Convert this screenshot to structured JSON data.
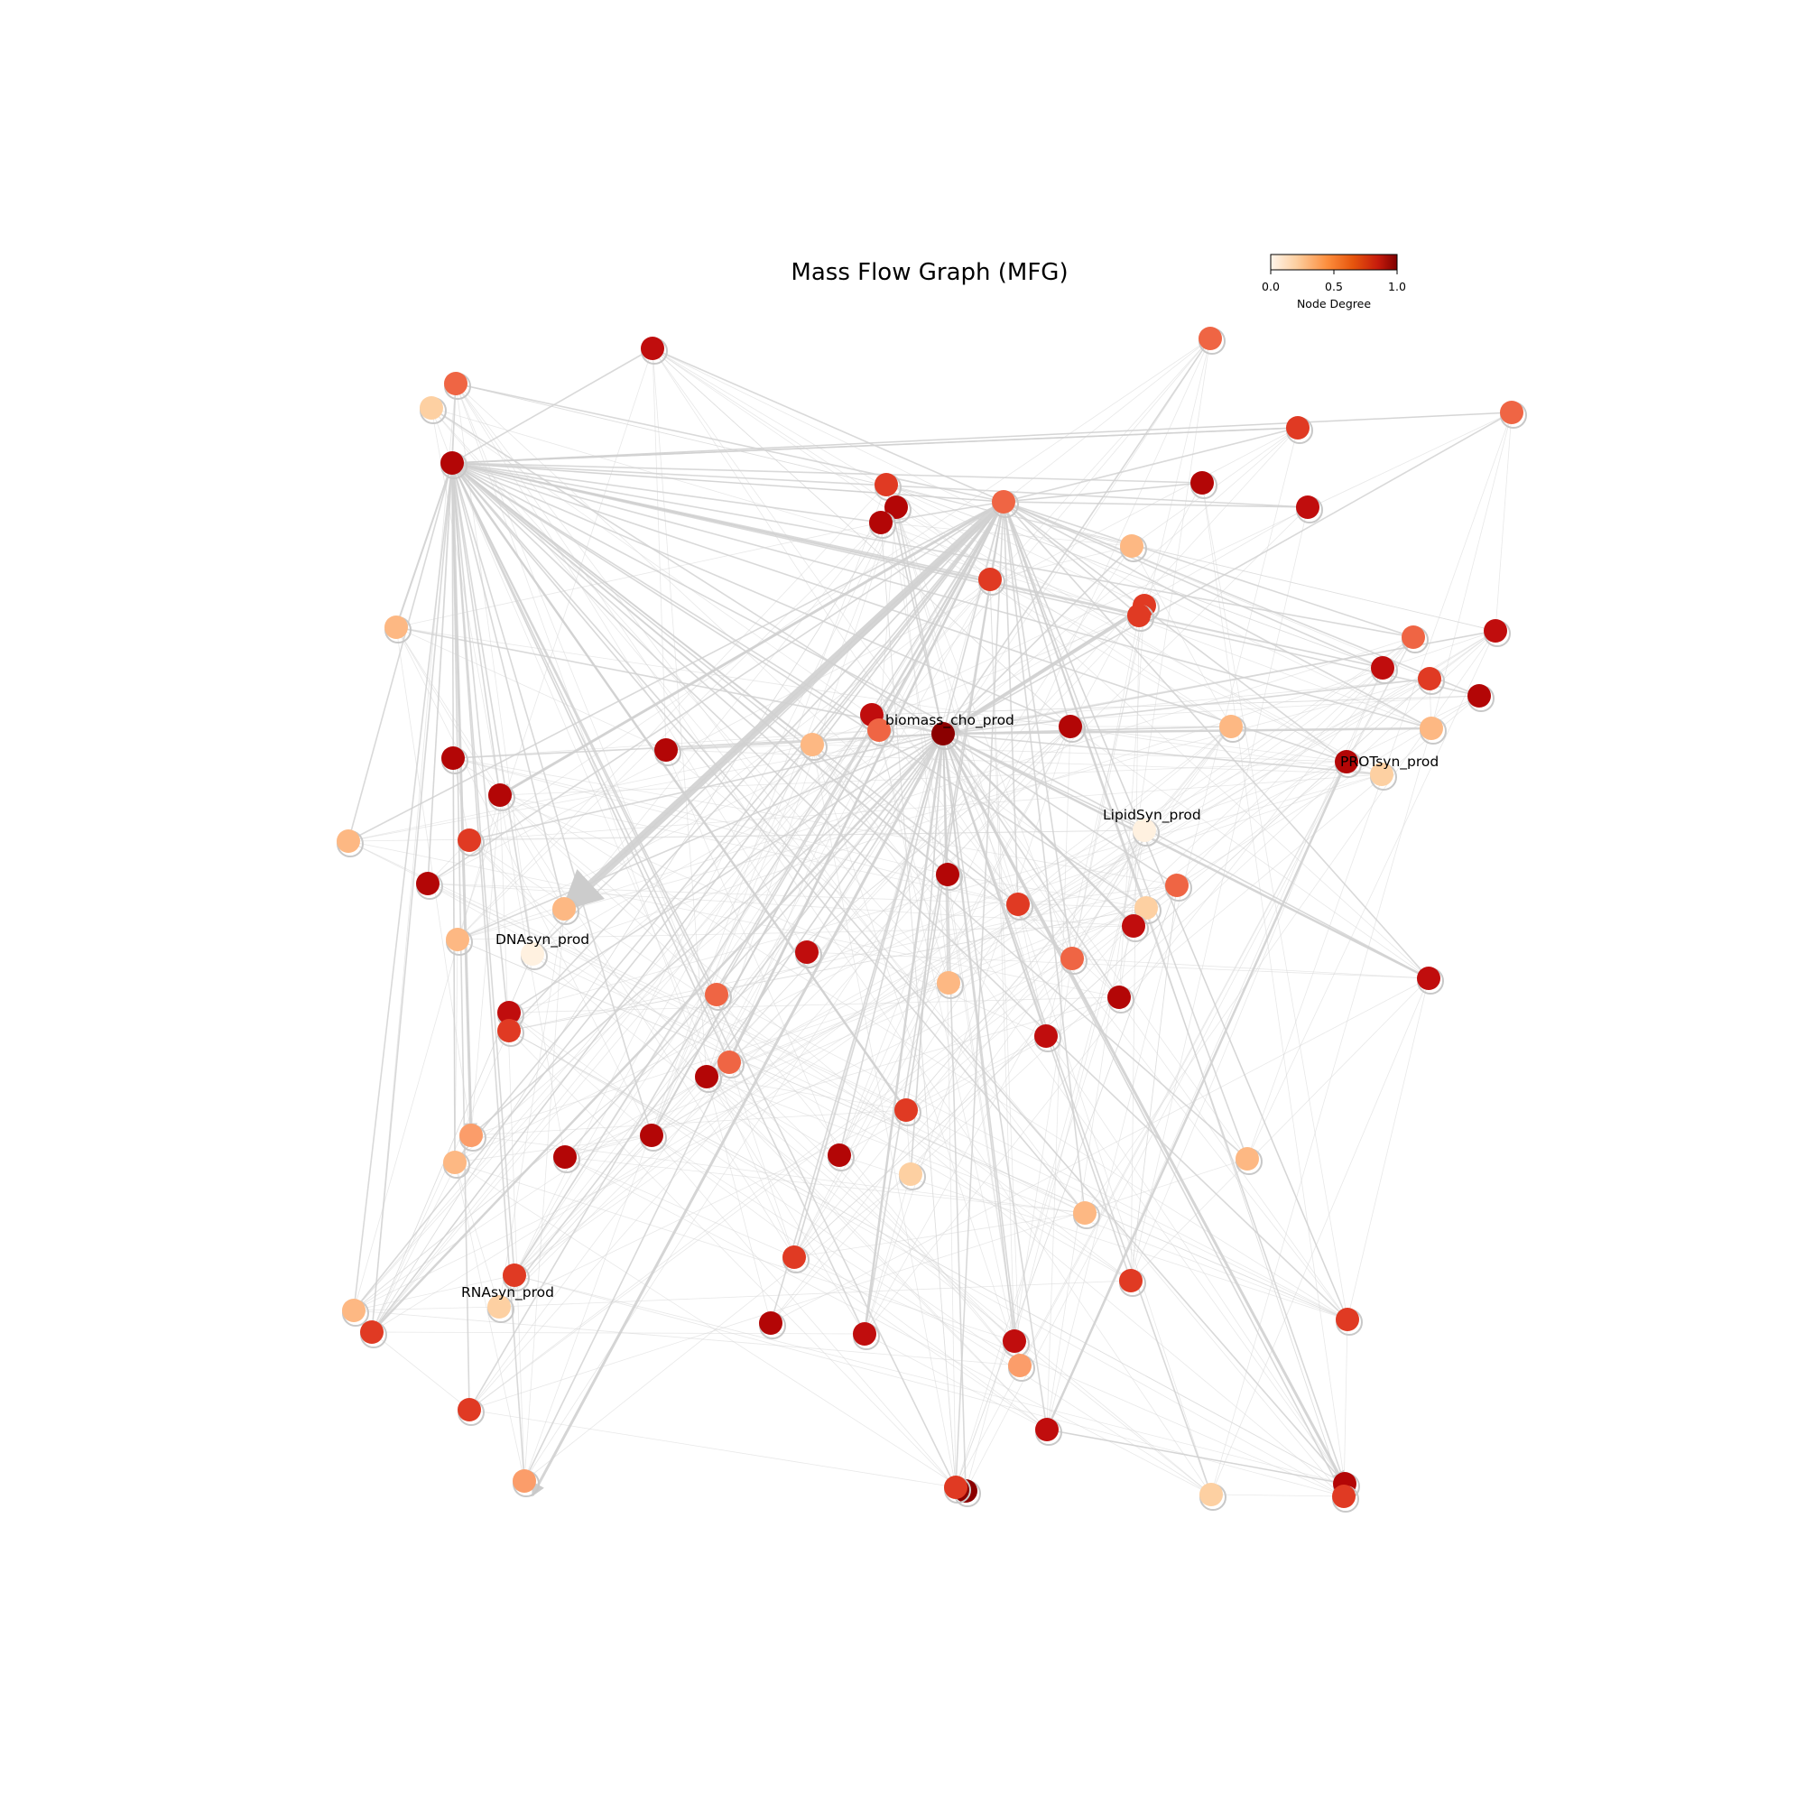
{
  "title": "Mass Flow Graph (MFG)",
  "colorbar": {
    "label": "Node Degree",
    "ticks": [
      "0.0",
      "0.5",
      "1.0"
    ],
    "colors": [
      "#fff5eb",
      "#fdd0a2",
      "#fd8d3c",
      "#e6550d",
      "#c61b0c",
      "#7f0000"
    ]
  },
  "node_labels": [
    "biomass_cho_prod",
    "PROTsyn_prod",
    "LipidSyn_prod",
    "DNAsyn_prod",
    "RNAsyn_prod"
  ],
  "chart_data": {
    "type": "network",
    "title": "Mass Flow Graph (MFG)",
    "color_scale": {
      "label": "Node Degree",
      "min": 0.0,
      "max": 1.0
    },
    "nodes": [
      {
        "id": "biomass_cho_prod",
        "degree": 1.0
      },
      {
        "id": "PROTsyn_prod",
        "degree": 0.35
      },
      {
        "id": "LipidSyn_prod",
        "degree": 0.05
      },
      {
        "id": "DNAsyn_prod",
        "degree": 0.05
      },
      {
        "id": "RNAsyn_prod",
        "degree": 0.3
      }
    ]
  }
}
